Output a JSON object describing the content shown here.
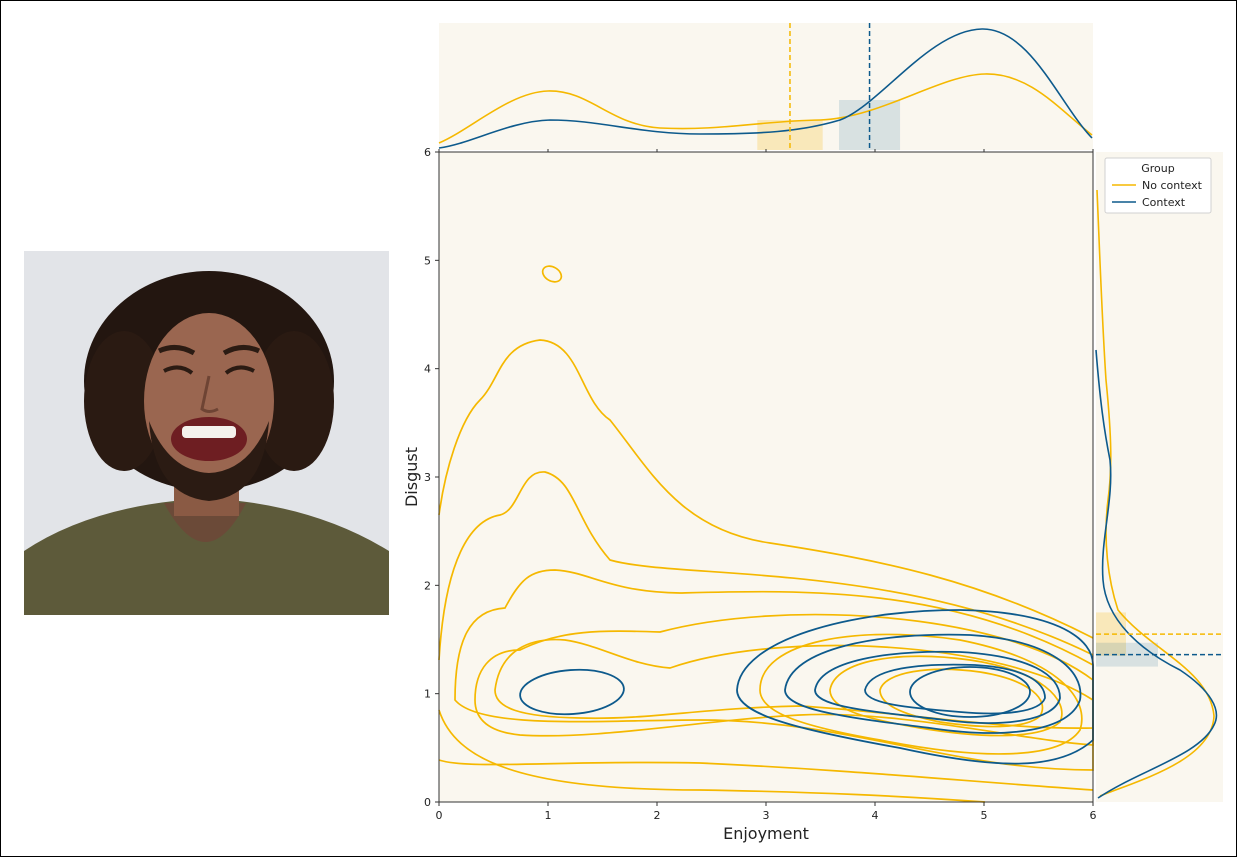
{
  "chart_data": {
    "type": "kde-joint",
    "xlabel": "Enjoyment",
    "ylabel": "Disgust",
    "xlim": [
      0,
      6
    ],
    "ylim": [
      0,
      6
    ],
    "xticks": [
      "0",
      "1",
      "2",
      "3",
      "4",
      "5",
      "6"
    ],
    "yticks": [
      "0",
      "1",
      "2",
      "3",
      "4",
      "5",
      "6"
    ],
    "legend": {
      "title": "Group",
      "placement": "upper-right-outside",
      "entries": [
        "No context",
        "Context"
      ]
    },
    "series": [
      {
        "name": "No context",
        "color": "#f5b800",
        "x_mean": 3.22,
        "x_ci": [
          2.92,
          3.52
        ],
        "y_mean": 1.55,
        "y_ci": [
          1.35,
          1.75
        ],
        "peaks": [
          {
            "x": 1.0,
            "y": 1.1
          },
          {
            "x": 4.75,
            "y": 1.0
          }
        ]
      },
      {
        "name": "Context",
        "color": "#0d5a8c",
        "x_mean": 3.95,
        "x_ci": [
          3.67,
          4.23
        ],
        "y_mean": 1.36,
        "y_ci": [
          1.25,
          1.47
        ],
        "peaks": [
          {
            "x": 1.2,
            "y": 1.0
          },
          {
            "x": 4.75,
            "y": 1.05
          }
        ]
      }
    ],
    "grid": false
  },
  "image": {
    "description_icon": "stimulus-face-photo"
  }
}
